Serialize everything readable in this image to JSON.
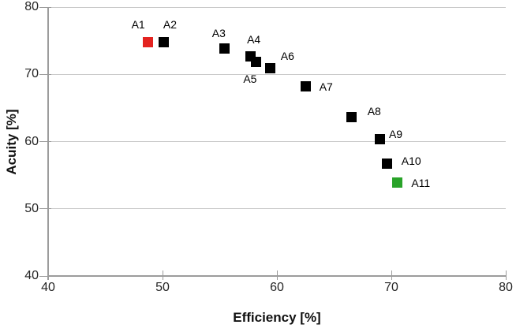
{
  "chart_data": {
    "type": "scatter",
    "title": "",
    "xlabel": "Efficiency [%]",
    "ylabel": "Acuity [%]",
    "xlim": [
      40,
      80
    ],
    "ylim": [
      40,
      80
    ],
    "x_ticks": [
      40,
      50,
      60,
      70,
      80
    ],
    "y_ticks": [
      40,
      50,
      60,
      70,
      80
    ],
    "grid": "horizontal-only",
    "legend": "none",
    "marker_shape": "square",
    "default_marker_color": "#000000",
    "points": [
      {
        "label": "A1",
        "x": 48.7,
        "y": 74.8,
        "color": "#e32320",
        "label_offset": [
          -12,
          -22
        ]
      },
      {
        "label": "A2",
        "x": 50.1,
        "y": 74.8,
        "color": "#000000",
        "label_offset": [
          8,
          -22
        ]
      },
      {
        "label": "A3",
        "x": 55.4,
        "y": 73.8,
        "color": "#000000",
        "label_offset": [
          -7,
          -20
        ]
      },
      {
        "label": "A4",
        "x": 57.7,
        "y": 72.7,
        "color": "#000000",
        "label_offset": [
          4,
          -21
        ]
      },
      {
        "label": "A5",
        "x": 58.2,
        "y": 71.8,
        "color": "#000000",
        "label_offset": [
          -8,
          21
        ]
      },
      {
        "label": "A6",
        "x": 59.4,
        "y": 70.9,
        "color": "#000000",
        "label_offset": [
          22,
          -16
        ]
      },
      {
        "label": "A7",
        "x": 62.5,
        "y": 68.2,
        "color": "#000000",
        "label_offset": [
          26,
          0
        ]
      },
      {
        "label": "A8",
        "x": 66.5,
        "y": 63.6,
        "color": "#000000",
        "label_offset": [
          29,
          -8
        ]
      },
      {
        "label": "A9",
        "x": 69.0,
        "y": 60.4,
        "color": "#000000",
        "label_offset": [
          20,
          -6
        ]
      },
      {
        "label": "A10",
        "x": 69.6,
        "y": 56.7,
        "color": "#000000",
        "label_offset": [
          31,
          -4
        ]
      },
      {
        "label": "A11",
        "x": 70.5,
        "y": 53.9,
        "color": "#29a329",
        "label_offset": [
          30,
          0
        ]
      }
    ],
    "axis_colors": {
      "gridline": "#c9c9c9",
      "axis_line": "#9c9c9c",
      "tick_text": "#242424"
    }
  }
}
